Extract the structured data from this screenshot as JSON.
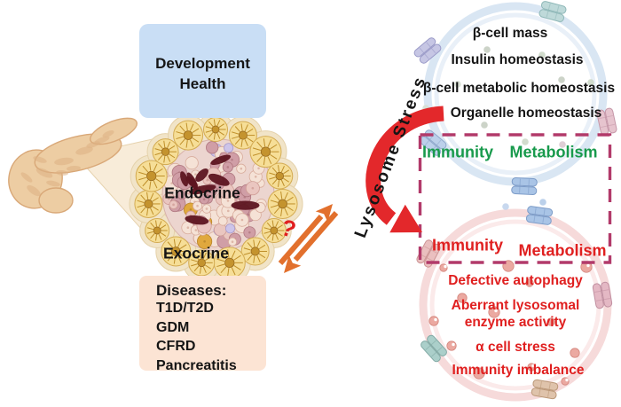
{
  "development_box": {
    "line1": "Development",
    "line2": "Health"
  },
  "pancreas": {
    "endocrine_label": "Endocrine",
    "exocrine_label": "Exocrine"
  },
  "diseases_box": {
    "title": "Diseases:",
    "items": [
      "T1D/T2D",
      "GDM",
      "CFRD",
      "Pancreatitis"
    ]
  },
  "link": {
    "question_mark": "?",
    "axis_label": "Lysosome Stress"
  },
  "healthy_state": {
    "items": [
      "β-cell mass",
      "Insulin homeostasis",
      "β-cell metabolic homeostasis",
      "Organelle homeostasis"
    ],
    "immunity": "Immunity",
    "metabolism": "Metabolism"
  },
  "stressed_state": {
    "immunity": "Immunity",
    "metabolism": "Metabolism",
    "items": [
      "Defective autophagy",
      "Aberrant lysosomal",
      "enzyme activity",
      "α cell stress",
      "Immunity imbalance"
    ]
  },
  "colors": {
    "alert_red": "#e01f1f",
    "highlight_green": "#189a4c",
    "dashed_border": "#b23a6a",
    "arrow_red": "#e3282b",
    "arrow_orange": "#e2702d",
    "development_box_bg": "#c9def5",
    "diseases_box_bg": "#fce4d4",
    "healthy_ring": "#d9e6f3",
    "stressed_ring": "#f6dada"
  }
}
